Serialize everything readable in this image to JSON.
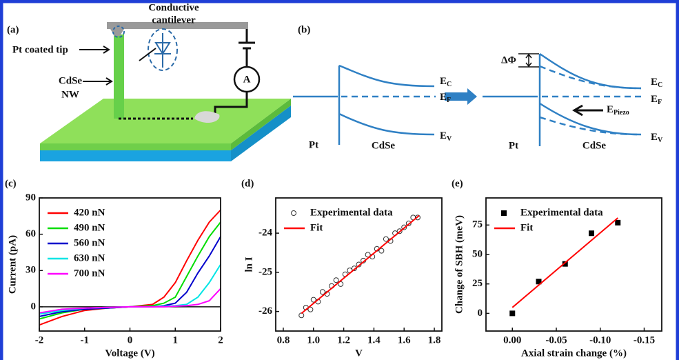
{
  "diagram_a": {
    "label": "(a)",
    "cantilever": [
      "Conductive",
      "cantilever"
    ],
    "tip": "Pt coated tip",
    "nanowire": [
      "CdSe",
      "NW"
    ],
    "ammeter": "A"
  },
  "diagram_b": {
    "label": "(b)",
    "left": {
      "metal": "Pt",
      "semiconductor": "CdSe",
      "levels": [
        {
          "main": "E",
          "sub": "C"
        },
        {
          "main": "E",
          "sub": "F"
        },
        {
          "main": "E",
          "sub": "V"
        }
      ]
    },
    "right": {
      "metal": "Pt",
      "semiconductor": "CdSe",
      "levels": [
        {
          "main": "E",
          "sub": "C"
        },
        {
          "main": "E",
          "sub": "F"
        },
        {
          "main": "E",
          "sub": "V"
        }
      ],
      "barrier_change": "ΔΦ",
      "field": {
        "main": "E",
        "sub": "Piezo"
      }
    }
  },
  "chart_data": [
    {
      "type": "line",
      "title": "(c)",
      "x_label": "Voltage (V)",
      "y_label": "Current (pA)",
      "x": [
        -2,
        -1.5,
        -1,
        -0.5,
        0,
        0.5,
        0.75,
        1,
        1.25,
        1.5,
        1.75,
        2
      ],
      "series": [
        {
          "name": "420 nN",
          "color": "#ff0000",
          "values": [
            -15,
            -8,
            -3,
            -1,
            0,
            2,
            8,
            20,
            38,
            55,
            70,
            80
          ]
        },
        {
          "name": "490 nN",
          "color": "#00dd00",
          "values": [
            -10,
            -5,
            -2,
            -1,
            0,
            1,
            3,
            8,
            25,
            42,
            58,
            70
          ]
        },
        {
          "name": "560 nN",
          "color": "#0000cc",
          "values": [
            -8,
            -4,
            -2,
            -1,
            0,
            0,
            1,
            3,
            12,
            28,
            42,
            58
          ]
        },
        {
          "name": "630 nN",
          "color": "#00e5e5",
          "values": [
            -6,
            -3,
            -1,
            -0.5,
            0,
            0,
            0.5,
            1,
            2,
            8,
            20,
            35
          ]
        },
        {
          "name": "700 nN",
          "color": "#ff00ff",
          "values": [
            -5,
            -2,
            -1,
            -0.5,
            0,
            0,
            0,
            0.5,
            1,
            2,
            5,
            15
          ]
        }
      ],
      "xlim": [
        -2,
        2
      ],
      "xticks": [
        -2,
        -1,
        0,
        1,
        2
      ],
      "ylim": [
        -20,
        90
      ],
      "yticks": [
        0,
        30,
        60,
        90
      ],
      "legend": "upper left"
    },
    {
      "type": "scatter",
      "title": "(d)",
      "x_label": "V",
      "y_label": "ln I",
      "series": [
        {
          "name": "Experimental data",
          "marker": "open-circle",
          "color": "#333333",
          "x": [
            0.92,
            0.95,
            0.98,
            1.0,
            1.03,
            1.06,
            1.09,
            1.12,
            1.15,
            1.18,
            1.21,
            1.24,
            1.27,
            1.3,
            1.33,
            1.36,
            1.39,
            1.42,
            1.45,
            1.48,
            1.51,
            1.54,
            1.57,
            1.6,
            1.63,
            1.66,
            1.69
          ],
          "values": [
            -26.1,
            -25.9,
            -25.95,
            -25.7,
            -25.75,
            -25.5,
            -25.55,
            -25.35,
            -25.2,
            -25.3,
            -25.05,
            -24.95,
            -24.9,
            -24.8,
            -24.7,
            -24.55,
            -24.6,
            -24.4,
            -24.45,
            -24.15,
            -24.2,
            -24.0,
            -23.95,
            -23.85,
            -23.75,
            -23.6,
            -23.6
          ]
        },
        {
          "name": "Fit",
          "color": "#ff0000",
          "x": [
            0.92,
            1.7
          ],
          "values": [
            -26.05,
            -23.55
          ]
        }
      ],
      "xlim": [
        0.75,
        1.85
      ],
      "xticks": [
        0.8,
        {
          "value": 1,
          "label": "1.0"
        },
        1.2,
        1.4,
        1.6,
        1.8
      ],
      "ylim": [
        -26.5,
        -23.1
      ],
      "yticks": [
        -26,
        -25,
        -24
      ],
      "legend": "upper left"
    },
    {
      "type": "scatter",
      "title": "(e)",
      "x_label": "Axial strain change (%)",
      "y_label": "Change of SBH (meV)",
      "series": [
        {
          "name": "Experimental data",
          "marker": "filled-square",
          "color": "#000000",
          "x": [
            0,
            -0.03,
            -0.06,
            -0.09,
            -0.12
          ],
          "values": [
            0,
            27,
            42,
            68,
            77
          ]
        },
        {
          "name": "Fit",
          "color": "#ff0000",
          "x": [
            0,
            -0.12
          ],
          "values": [
            5,
            81
          ]
        }
      ],
      "xlim": [
        0.03,
        -0.17
      ],
      "xticks": [
        {
          "value": 0,
          "label": "0.00"
        },
        -0.05,
        {
          "value": -0.1,
          "label": "-0.10"
        },
        -0.15
      ],
      "ylim": [
        -15,
        98
      ],
      "yticks": [
        0,
        25,
        50,
        75
      ],
      "legend": "upper left"
    }
  ]
}
